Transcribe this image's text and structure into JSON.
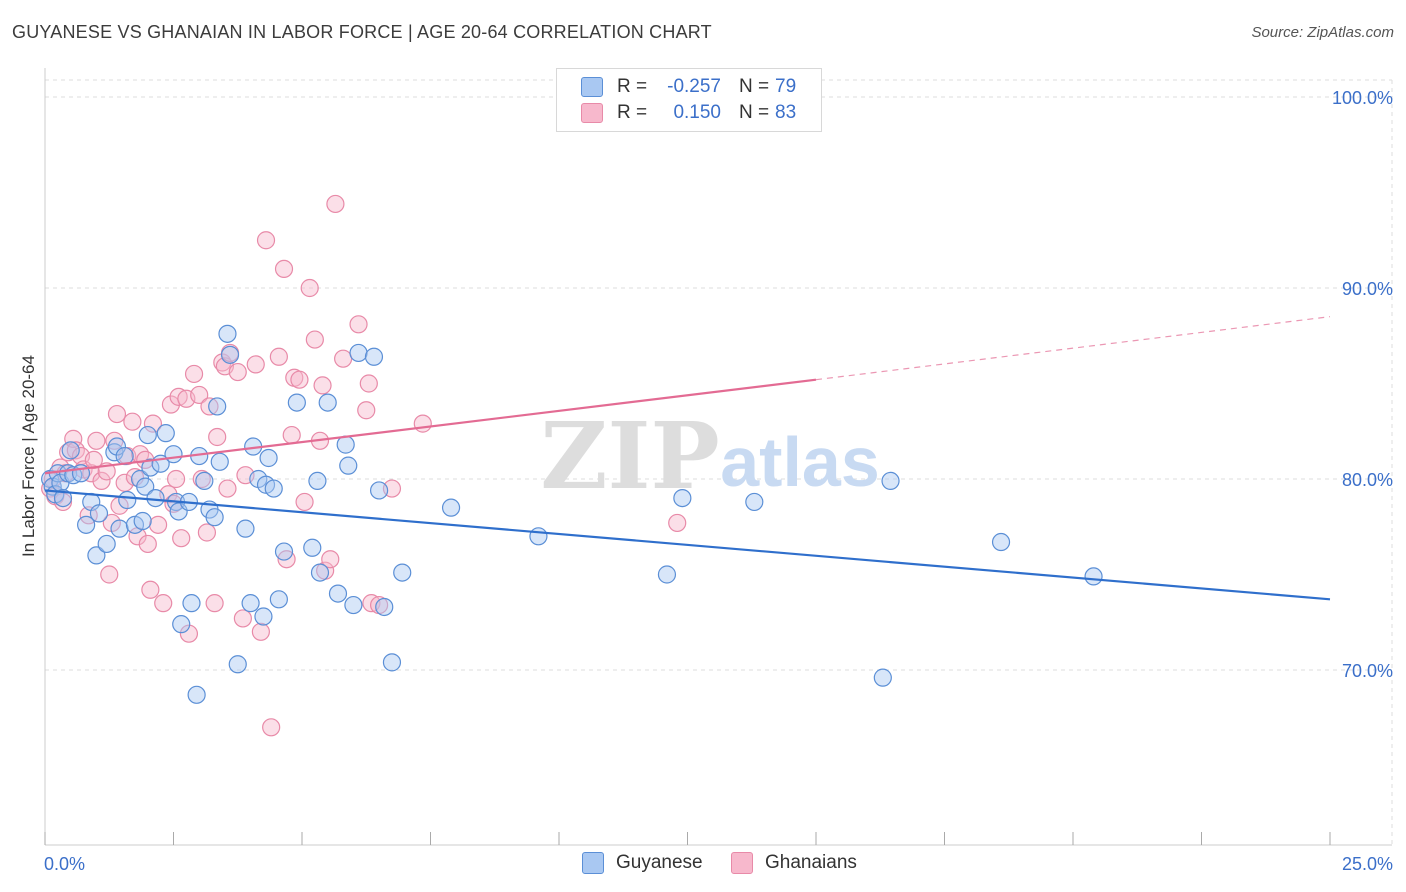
{
  "title": "GUYANESE VS GHANAIAN IN LABOR FORCE | AGE 20-64 CORRELATION CHART",
  "source": "Source: ZipAtlas.com",
  "watermark": {
    "zip": "ZIP",
    "atlas": "atlas"
  },
  "legend": {
    "rows": [
      {
        "r_label": "R =",
        "r_value": "-0.257",
        "n_label": "N =",
        "n_value": "79"
      },
      {
        "r_label": "R =",
        "r_value": "0.150",
        "n_label": "N =",
        "n_value": "83"
      }
    ]
  },
  "bottom_legend": [
    "Guyanese",
    "Ghanaians"
  ],
  "colors": {
    "blue_fill": "#a9c8f2",
    "blue_stroke": "#5b8fd6",
    "blue_line": "#2f6fcc",
    "pink_fill": "#f7b8cc",
    "pink_stroke": "#e88aa8",
    "pink_line": "#e36b93",
    "tick_label": "#3b6fc9",
    "grid": "#dedede"
  },
  "chart_data": {
    "type": "scatter",
    "xlabel": "",
    "ylabel": "In Labor Force | Age 20-64",
    "xlim": [
      0,
      25
    ],
    "ylim": [
      60,
      102
    ],
    "x_tick_labels": [
      {
        "value": 0,
        "label": "0.0%"
      },
      {
        "value": 25,
        "label": "25.0%"
      }
    ],
    "y_tick_labels": [
      {
        "value": 100,
        "label": "100.0%"
      },
      {
        "value": 90,
        "label": "90.0%"
      },
      {
        "value": 80,
        "label": "80.0%"
      },
      {
        "value": 70,
        "label": "70.0%"
      }
    ],
    "grid": true,
    "series": [
      {
        "name": "Guyanese",
        "color": "#a9c8f2",
        "trend": {
          "x_start": 0,
          "y_start": 79.4,
          "x_end": 25,
          "y_end": 73.7
        },
        "points": [
          [
            0.1,
            80.0
          ],
          [
            0.15,
            79.6
          ],
          [
            0.2,
            79.2
          ],
          [
            0.25,
            80.3
          ],
          [
            0.3,
            79.8
          ],
          [
            0.35,
            79.0
          ],
          [
            0.45,
            80.3
          ],
          [
            0.5,
            81.5
          ],
          [
            0.55,
            80.2
          ],
          [
            0.7,
            80.3
          ],
          [
            0.8,
            77.6
          ],
          [
            0.9,
            78.8
          ],
          [
            1.0,
            76.0
          ],
          [
            1.05,
            78.2
          ],
          [
            1.2,
            76.6
          ],
          [
            1.35,
            81.4
          ],
          [
            1.4,
            81.7
          ],
          [
            1.45,
            77.4
          ],
          [
            1.55,
            81.2
          ],
          [
            1.6,
            78.9
          ],
          [
            1.75,
            77.6
          ],
          [
            1.85,
            80.0
          ],
          [
            1.9,
            77.8
          ],
          [
            1.95,
            79.6
          ],
          [
            2.0,
            82.3
          ],
          [
            2.05,
            80.6
          ],
          [
            2.15,
            79.0
          ],
          [
            2.25,
            80.8
          ],
          [
            2.35,
            82.4
          ],
          [
            2.5,
            81.3
          ],
          [
            2.55,
            78.8
          ],
          [
            2.6,
            78.3
          ],
          [
            2.65,
            72.4
          ],
          [
            2.8,
            78.8
          ],
          [
            2.85,
            73.5
          ],
          [
            2.95,
            68.7
          ],
          [
            3.0,
            81.2
          ],
          [
            3.1,
            79.9
          ],
          [
            3.2,
            78.4
          ],
          [
            3.3,
            78.0
          ],
          [
            3.35,
            83.8
          ],
          [
            3.4,
            80.9
          ],
          [
            3.55,
            87.6
          ],
          [
            3.6,
            86.5
          ],
          [
            3.75,
            70.3
          ],
          [
            3.9,
            77.4
          ],
          [
            4.0,
            73.5
          ],
          [
            4.05,
            81.7
          ],
          [
            4.15,
            80.0
          ],
          [
            4.25,
            72.8
          ],
          [
            4.3,
            79.7
          ],
          [
            4.35,
            81.1
          ],
          [
            4.45,
            79.5
          ],
          [
            4.55,
            73.7
          ],
          [
            4.65,
            76.2
          ],
          [
            4.9,
            84.0
          ],
          [
            5.3,
            79.9
          ],
          [
            5.2,
            76.4
          ],
          [
            5.35,
            75.1
          ],
          [
            5.5,
            84.0
          ],
          [
            5.7,
            74.0
          ],
          [
            5.85,
            81.8
          ],
          [
            5.9,
            80.7
          ],
          [
            6.0,
            73.4
          ],
          [
            6.1,
            86.6
          ],
          [
            6.4,
            86.4
          ],
          [
            6.5,
            79.4
          ],
          [
            6.6,
            73.3
          ],
          [
            6.75,
            70.4
          ],
          [
            6.95,
            75.1
          ],
          [
            7.9,
            78.5
          ],
          [
            9.6,
            77.0
          ],
          [
            12.1,
            75.0
          ],
          [
            12.4,
            79.0
          ],
          [
            13.8,
            78.8
          ],
          [
            16.3,
            69.6
          ],
          [
            16.45,
            79.9
          ],
          [
            18.6,
            76.7
          ],
          [
            20.4,
            74.9
          ]
        ]
      },
      {
        "name": "Ghanaians",
        "color": "#f7b8cc",
        "trend": {
          "x_start": 0,
          "y_start": 80.3,
          "x_end": 15.0,
          "y_end": 85.2,
          "dash_x_end": 25,
          "dash_y_end": 88.5
        },
        "points": [
          [
            0.1,
            79.5
          ],
          [
            0.15,
            80.0
          ],
          [
            0.2,
            79.1
          ],
          [
            0.3,
            80.6
          ],
          [
            0.35,
            78.8
          ],
          [
            0.4,
            80.3
          ],
          [
            0.45,
            81.4
          ],
          [
            0.55,
            82.1
          ],
          [
            0.6,
            81.5
          ],
          [
            0.7,
            81.2
          ],
          [
            0.75,
            80.5
          ],
          [
            0.85,
            78.1
          ],
          [
            0.9,
            80.3
          ],
          [
            0.95,
            81.0
          ],
          [
            1.0,
            82.0
          ],
          [
            1.1,
            79.9
          ],
          [
            1.2,
            80.4
          ],
          [
            1.25,
            75.0
          ],
          [
            1.35,
            82.0
          ],
          [
            1.4,
            83.4
          ],
          [
            1.45,
            78.6
          ],
          [
            1.55,
            79.8
          ],
          [
            1.6,
            81.2
          ],
          [
            1.7,
            83.0
          ],
          [
            1.75,
            80.1
          ],
          [
            1.8,
            77.0
          ],
          [
            1.85,
            81.3
          ],
          [
            1.95,
            81.0
          ],
          [
            2.0,
            76.6
          ],
          [
            2.05,
            74.2
          ],
          [
            2.1,
            82.9
          ],
          [
            2.2,
            77.6
          ],
          [
            2.3,
            73.5
          ],
          [
            2.4,
            79.2
          ],
          [
            2.45,
            83.9
          ],
          [
            2.55,
            80.0
          ],
          [
            2.6,
            84.3
          ],
          [
            2.65,
            76.9
          ],
          [
            2.75,
            84.2
          ],
          [
            2.8,
            71.9
          ],
          [
            2.9,
            85.5
          ],
          [
            3.0,
            84.4
          ],
          [
            3.05,
            80.0
          ],
          [
            3.15,
            77.2
          ],
          [
            3.2,
            83.8
          ],
          [
            3.3,
            73.5
          ],
          [
            3.35,
            82.2
          ],
          [
            3.45,
            86.1
          ],
          [
            3.5,
            85.9
          ],
          [
            3.55,
            79.5
          ],
          [
            3.6,
            86.6
          ],
          [
            3.75,
            85.6
          ],
          [
            3.85,
            72.7
          ],
          [
            3.9,
            80.2
          ],
          [
            4.1,
            86.0
          ],
          [
            4.2,
            72.0
          ],
          [
            4.3,
            92.5
          ],
          [
            4.4,
            67.0
          ],
          [
            4.55,
            86.4
          ],
          [
            4.65,
            91.0
          ],
          [
            4.7,
            75.8
          ],
          [
            4.8,
            82.3
          ],
          [
            4.85,
            85.3
          ],
          [
            4.95,
            85.2
          ],
          [
            5.05,
            78.8
          ],
          [
            5.15,
            90.0
          ],
          [
            5.25,
            87.3
          ],
          [
            5.35,
            82.0
          ],
          [
            5.4,
            84.9
          ],
          [
            5.45,
            75.2
          ],
          [
            5.55,
            75.8
          ],
          [
            5.65,
            94.4
          ],
          [
            5.8,
            86.3
          ],
          [
            6.1,
            88.1
          ],
          [
            6.25,
            83.6
          ],
          [
            6.3,
            85.0
          ],
          [
            6.35,
            73.5
          ],
          [
            6.5,
            73.4
          ],
          [
            6.75,
            79.5
          ],
          [
            7.35,
            82.9
          ],
          [
            12.3,
            77.7
          ],
          [
            1.3,
            77.7
          ],
          [
            2.5,
            78.7
          ]
        ]
      }
    ]
  }
}
